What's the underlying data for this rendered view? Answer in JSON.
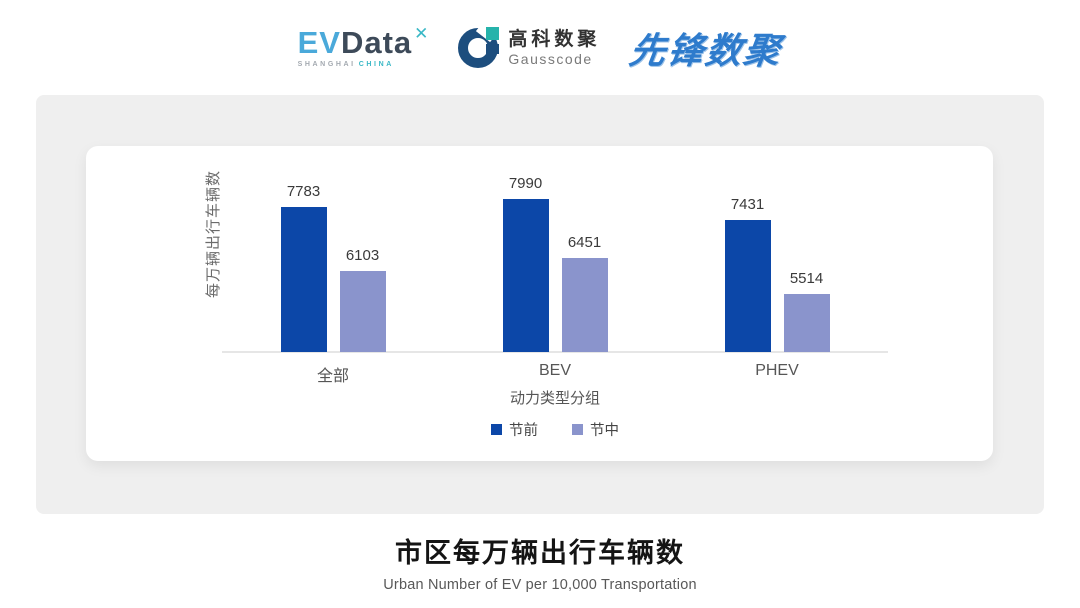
{
  "header": {
    "evdata": {
      "ev": "EV",
      "data": "Data",
      "mark": "✕",
      "sub_left": "SHANGHAI",
      "sub_right": "CHINA"
    },
    "gausscode": {
      "cn": "高科数聚",
      "en": "Gausscode"
    },
    "xianfeng": "先锋数聚"
  },
  "chart_data": {
    "type": "bar",
    "categories": [
      "全部",
      "BEV",
      "PHEV"
    ],
    "series": [
      {
        "name": "节前",
        "color": "#0c47a8",
        "values": [
          7783,
          7990,
          7431
        ]
      },
      {
        "name": "节中",
        "color": "#8a94cc",
        "values": [
          6103,
          6451,
          5514
        ]
      }
    ],
    "ylabel": "每万辆出行车辆数",
    "xlabel": "动力类型分组",
    "ylim": [
      4000,
      8400
    ],
    "grid": false,
    "legend_position": "bottom",
    "value_labels": true
  },
  "footer": {
    "title": "市区每万辆出行车辆数",
    "subtitle": "Urban Number of EV per 10,000 Transportation"
  }
}
